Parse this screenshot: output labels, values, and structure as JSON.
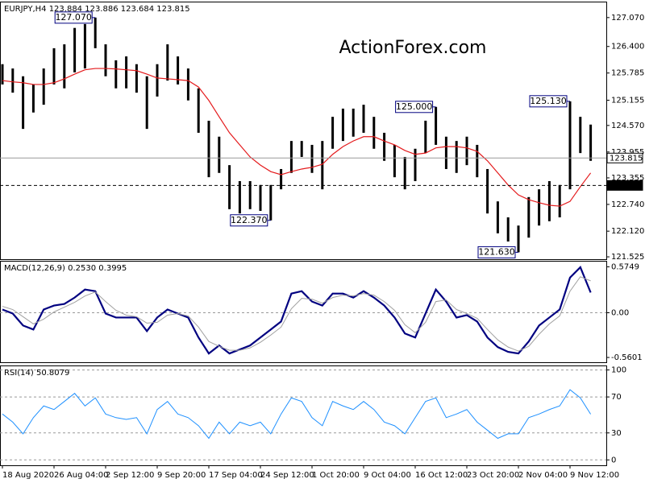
{
  "chart_data": [
    {
      "type": "ohlc",
      "title": "EURJPY,H4  123.884 123.886 123.684 123.815",
      "watermark": "ActionForex.com",
      "categories": [
        "18 Aug 2020",
        null,
        null,
        null,
        null,
        "26 Aug 04:00",
        null,
        null,
        null,
        null,
        "2 Sep 12:00",
        null,
        null,
        null,
        null,
        "9 Sep 20:00",
        null,
        null,
        null,
        null,
        "17 Sep 04:00",
        null,
        null,
        null,
        null,
        "24 Sep 12:00",
        null,
        null,
        null,
        null,
        "1 Oct 20:00",
        null,
        null,
        null,
        null,
        "9 Oct 04:00",
        null,
        null,
        null,
        null,
        "16 Oct 12:00",
        null,
        null,
        null,
        null,
        "23 Oct 20:00",
        null,
        null,
        null,
        null,
        "2 Nov 04:00",
        null,
        null,
        null,
        null,
        "9 Nov 12:00",
        null,
        null
      ],
      "high": [
        125.99,
        125.89,
        125.71,
        125.52,
        125.89,
        126.36,
        126.45,
        126.83,
        126.92,
        127.07,
        126.45,
        126.08,
        126.17,
        125.99,
        125.71,
        125.99,
        126.45,
        126.17,
        125.89,
        125.43,
        124.68,
        124.31,
        123.65,
        123.28,
        123.28,
        123.19,
        123.19,
        123.56,
        124.21,
        124.21,
        124.12,
        124.21,
        124.77,
        124.96,
        124.96,
        125.05,
        124.77,
        124.4,
        124.12,
        123.84,
        124.03,
        124.68,
        125.0,
        124.31,
        124.21,
        124.31,
        124.12,
        123.56,
        122.81,
        122.44,
        122.25,
        122.91,
        123.09,
        123.28,
        123.19,
        125.13,
        124.77,
        124.59
      ],
      "low": [
        125.52,
        125.33,
        124.49,
        124.87,
        125.05,
        125.52,
        125.43,
        125.8,
        125.89,
        126.36,
        125.71,
        125.43,
        125.43,
        125.33,
        124.49,
        125.24,
        125.61,
        125.52,
        125.15,
        124.4,
        123.37,
        123.47,
        122.63,
        122.53,
        122.63,
        122.59,
        122.37,
        123.09,
        123.47,
        123.84,
        123.47,
        123.09,
        124.03,
        124.21,
        124.31,
        124.4,
        124.03,
        123.75,
        123.37,
        123.09,
        123.28,
        123.93,
        124.12,
        123.56,
        123.47,
        123.65,
        123.37,
        122.53,
        122.07,
        121.88,
        121.63,
        121.97,
        122.25,
        122.35,
        122.44,
        123.09,
        123.93,
        123.75
      ],
      "ma": {
        "color": "#e41a1c",
        "values": [
          125.61,
          125.58,
          125.56,
          125.52,
          125.52,
          125.56,
          125.65,
          125.76,
          125.86,
          125.89,
          125.89,
          125.88,
          125.86,
          125.84,
          125.76,
          125.67,
          125.65,
          125.63,
          125.61,
          125.46,
          125.15,
          124.77,
          124.4,
          124.12,
          123.84,
          123.65,
          123.5,
          123.43,
          123.5,
          123.56,
          123.6,
          123.67,
          123.9,
          124.08,
          124.21,
          124.31,
          124.31,
          124.21,
          124.12,
          123.99,
          123.9,
          123.93,
          124.05,
          124.08,
          124.08,
          124.05,
          123.97,
          123.75,
          123.47,
          123.19,
          122.96,
          122.85,
          122.78,
          122.72,
          122.7,
          122.81,
          123.15,
          123.47
        ]
      },
      "color": "#000000",
      "ylim": [
        121.47,
        127.44
      ],
      "yticks": [
        {
          "value": 127.07,
          "label": "127.070"
        },
        {
          "value": 126.4,
          "label": "126.400"
        },
        125.785,
        125.155,
        {
          "value": 124.57,
          "label": "124.570"
        },
        123.955,
        123.355,
        {
          "value": 122.74,
          "label": "122.740"
        },
        {
          "value": 122.12,
          "label": "122.120"
        },
        121.525
      ],
      "grid": false,
      "annotations": [
        {
          "value": 127.07,
          "label": "127.070"
        },
        {
          "value": 125.0,
          "label": "125.000"
        },
        {
          "value": 125.13,
          "label": "125.130"
        },
        {
          "value": 122.37,
          "label": "122.370"
        },
        {
          "value": 121.63,
          "label": "121.630"
        }
      ],
      "levels": [
        {
          "value": 123.815,
          "label": "123.815",
          "style": "solid"
        },
        {
          "value": 123.18,
          "label": "123.180",
          "style": "dashed"
        }
      ]
    },
    {
      "type": "line",
      "title": "MACD(12,26,9) 0.2530 0.3995",
      "series": [
        {
          "color": "#000080",
          "values": [
            0.04,
            -0.01,
            -0.16,
            -0.21,
            0.04,
            0.09,
            0.11,
            0.19,
            0.29,
            0.27,
            -0.01,
            -0.06,
            -0.06,
            -0.06,
            -0.23,
            -0.06,
            0.04,
            -0.01,
            -0.06,
            -0.31,
            -0.51,
            -0.41,
            -0.51,
            -0.46,
            -0.41,
            -0.31,
            -0.21,
            -0.11,
            0.24,
            0.27,
            0.14,
            0.09,
            0.24,
            0.24,
            0.19,
            0.27,
            0.19,
            0.09,
            -0.06,
            -0.26,
            -0.31,
            -0.01,
            0.29,
            0.14,
            -0.06,
            -0.03,
            -0.11,
            -0.31,
            -0.43,
            -0.49,
            -0.51,
            -0.36,
            -0.16,
            -0.06,
            0.04,
            0.44,
            0.57,
            0.253
          ]
        },
        {
          "color": "#a0a0a0",
          "values": [
            0.08,
            0.04,
            -0.05,
            -0.14,
            -0.08,
            0.01,
            0.07,
            0.13,
            0.21,
            0.26,
            0.14,
            0.03,
            -0.03,
            -0.05,
            -0.13,
            -0.12,
            -0.03,
            -0.01,
            -0.04,
            -0.18,
            -0.36,
            -0.42,
            -0.47,
            -0.47,
            -0.44,
            -0.37,
            -0.28,
            -0.18,
            0.05,
            0.18,
            0.17,
            0.12,
            0.19,
            0.22,
            0.21,
            0.24,
            0.22,
            0.14,
            0.03,
            -0.15,
            -0.25,
            -0.12,
            0.14,
            0.16,
            0.04,
            -0.01,
            -0.07,
            -0.21,
            -0.34,
            -0.43,
            -0.48,
            -0.42,
            -0.27,
            -0.14,
            -0.04,
            0.27,
            0.45,
            0.3995
          ]
        }
      ],
      "ylim": [
        -0.62,
        0.65
      ],
      "yticks": [
        0.5749,
        {
          "value": 0,
          "label": "0.00"
        },
        -0.5601
      ],
      "grid": true
    },
    {
      "type": "line",
      "title": "RSI(14) 50.8079",
      "series": [
        {
          "color": "#1e90ff",
          "values": [
            51,
            42,
            29,
            47,
            60,
            56,
            65,
            74,
            60,
            69,
            51,
            47,
            45,
            47,
            29,
            56,
            65,
            51,
            47,
            38,
            24,
            42,
            29,
            42,
            38,
            42,
            29,
            51,
            69,
            65,
            47,
            38,
            65,
            60,
            56,
            65,
            56,
            42,
            38,
            29,
            47,
            65,
            69,
            47,
            51,
            56,
            42,
            33,
            24,
            29,
            29,
            47,
            51,
            56,
            60,
            78,
            69,
            50.8079
          ]
        }
      ],
      "ylim": [
        -6,
        105
      ],
      "yticks": [
        100,
        70,
        30,
        0
      ],
      "grid": true
    }
  ]
}
